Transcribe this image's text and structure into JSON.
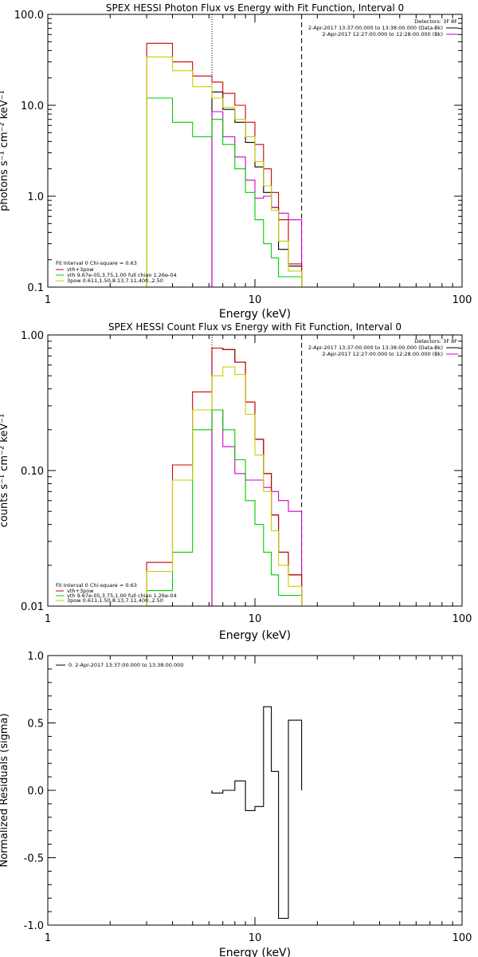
{
  "chart_data": [
    {
      "type": "line",
      "title": "SPEX HESSI Photon Flux vs Energy with Fit Function, Interval 0",
      "xlabel": "Energy (keV)",
      "ylabel": "photons s⁻¹ cm⁻² keV⁻¹",
      "xscale": "log",
      "yscale": "log",
      "xlim": [
        1,
        100
      ],
      "ylim": [
        0.1,
        100
      ],
      "xticks": [
        "1",
        "10",
        "100"
      ],
      "yticks": [
        "0.1",
        "1.0",
        "10.0",
        "100.0"
      ],
      "vlines": [
        {
          "x": 6.2,
          "style": "dotted"
        },
        {
          "x": 16.8,
          "style": "dashed"
        }
      ],
      "info_box": {
        "detectors": "Detectors: 3F 8F",
        "lines": [
          {
            "text": "2-Apr-2017 13:37:00.000 to 13:38:00.000 (Data-Bk)",
            "color": "#000000"
          },
          {
            "text": "2-Apr-2017 12:27:00.000 to 12:28:00.000 (Bk)",
            "color": "#cc00cc"
          }
        ]
      },
      "fit_legend": {
        "title": "Fit Interval 0   Chi-square = 0.63",
        "items": [
          {
            "text": "vth+3pow",
            "color": "#cc0000"
          },
          {
            "text": "vth 9.67e-05,3.75,1.00  full chian 1.26e-04",
            "color": "#00cc00"
          },
          {
            "text": "3pow 0.611,1.50,8.13,7.11,400.,2.50",
            "color": "#cccc00"
          }
        ]
      },
      "bin_edges": [
        3.0,
        4.0,
        5.0,
        6.2,
        7.0,
        8.0,
        9.0,
        10.0,
        11.0,
        12.0,
        13.0,
        14.5,
        16.8
      ],
      "series": [
        {
          "color": "#000000",
          "values": [
            null,
            null,
            null,
            14.0,
            9.0,
            6.5,
            3.9,
            2.1,
            1.1,
            0.75,
            0.26,
            0.17
          ],
          "from_bin": 3
        },
        {
          "color": "#cc00cc",
          "values": [
            null,
            null,
            null,
            8.5,
            4.5,
            2.7,
            1.5,
            0.95,
            1.0,
            0.75,
            0.65,
            0.55
          ],
          "from_bin": 3
        },
        {
          "color": "#cc0000",
          "values": [
            48.0,
            30.0,
            21.0,
            18.0,
            13.5,
            10.0,
            6.5,
            3.7,
            2.0,
            1.1,
            0.55,
            0.18
          ]
        },
        {
          "color": "#00cc00",
          "values": [
            12.0,
            6.5,
            4.5,
            7.0,
            3.7,
            2.0,
            1.1,
            0.55,
            0.3,
            0.21,
            0.13,
            0.13
          ]
        },
        {
          "color": "#cccc00",
          "values": [
            34.0,
            24.0,
            16.0,
            12.0,
            9.5,
            7.0,
            4.5,
            2.4,
            1.3,
            0.7,
            0.32,
            0.15
          ]
        }
      ]
    },
    {
      "type": "line",
      "title": "SPEX HESSI Count Flux vs Energy with Fit Function, Interval 0",
      "xlabel": "Energy (keV)",
      "ylabel": "counts s⁻¹ cm⁻² keV⁻¹",
      "xscale": "log",
      "yscale": "log",
      "xlim": [
        1,
        100
      ],
      "ylim": [
        0.01,
        1.0
      ],
      "xticks": [
        "1",
        "10",
        "100"
      ],
      "yticks": [
        "0.01",
        "0.10",
        "1.00"
      ],
      "vlines": [
        {
          "x": 6.2,
          "style": "dotted"
        },
        {
          "x": 16.8,
          "style": "dashed"
        }
      ],
      "info_box": {
        "detectors": "Detectors: 3F 8F",
        "lines": [
          {
            "text": "2-Apr-2017 13:37:00.000 to 13:38:00.000 (Data-Bk)",
            "color": "#000000"
          },
          {
            "text": "2-Apr-2017 12:27:00.000 to 12:28:00.000 (Bk)",
            "color": "#cc00cc"
          }
        ]
      },
      "fit_legend": {
        "title": "Fit Interval 0   Chi-square = 0.63",
        "items": [
          {
            "text": "vth+3pow",
            "color": "#cc0000"
          },
          {
            "text": "vth 9.67e-05,3.75,1.00  full chian 1.26e-04",
            "color": "#00cc00"
          },
          {
            "text": "3pow 0.611,1.50,8.13,7.11,400.,2.50",
            "color": "#cccc00"
          }
        ]
      },
      "bin_edges": [
        3.0,
        4.0,
        5.0,
        6.2,
        7.0,
        8.0,
        9.0,
        10.0,
        11.0,
        12.0,
        13.0,
        14.5,
        16.8
      ],
      "series": [
        {
          "color": "#000000",
          "values": [
            null,
            null,
            null,
            0.8,
            0.78,
            0.63,
            0.32,
            0.17,
            0.095,
            0.047,
            0.025,
            0.017
          ],
          "from_bin": 3
        },
        {
          "color": "#cc00cc",
          "values": [
            null,
            null,
            null,
            0.28,
            0.15,
            0.095,
            0.085,
            0.085,
            0.075,
            0.07,
            0.06,
            0.05
          ],
          "from_bin": 3
        },
        {
          "color": "#cc0000",
          "values": [
            0.021,
            0.11,
            0.38,
            0.8,
            0.78,
            0.63,
            0.32,
            0.17,
            0.095,
            0.047,
            0.025,
            0.017
          ]
        },
        {
          "color": "#00cc00",
          "values": [
            0.013,
            0.025,
            0.2,
            0.28,
            0.2,
            0.12,
            0.06,
            0.04,
            0.025,
            0.017,
            0.012,
            0.012
          ]
        },
        {
          "color": "#cccc00",
          "values": [
            0.018,
            0.085,
            0.28,
            0.5,
            0.58,
            0.51,
            0.26,
            0.13,
            0.07,
            0.036,
            0.02,
            0.014
          ]
        }
      ]
    },
    {
      "type": "line",
      "title": "",
      "xlabel": "Energy (keV)",
      "ylabel": "Normalized Residuals (sigma)",
      "xscale": "log",
      "yscale": "linear",
      "xlim": [
        1,
        100
      ],
      "ylim": [
        -1.0,
        1.0
      ],
      "xticks": [
        "1",
        "10",
        "100"
      ],
      "yticks": [
        "-1.0",
        "-0.5",
        "0.0",
        "0.5",
        "1.0"
      ],
      "legend": {
        "text": "0. 2-Apr-2017 13:37:00.000 to 13:38:00.000",
        "color": "#000000"
      },
      "bin_edges": [
        6.2,
        7.0,
        8.0,
        9.0,
        10.0,
        11.0,
        12.0,
        13.0,
        14.5,
        16.8
      ],
      "series": [
        {
          "color": "#000000",
          "values": [
            -0.02,
            0.0,
            0.07,
            -0.15,
            -0.12,
            0.62,
            0.14,
            -0.95,
            0.52
          ]
        }
      ]
    }
  ]
}
